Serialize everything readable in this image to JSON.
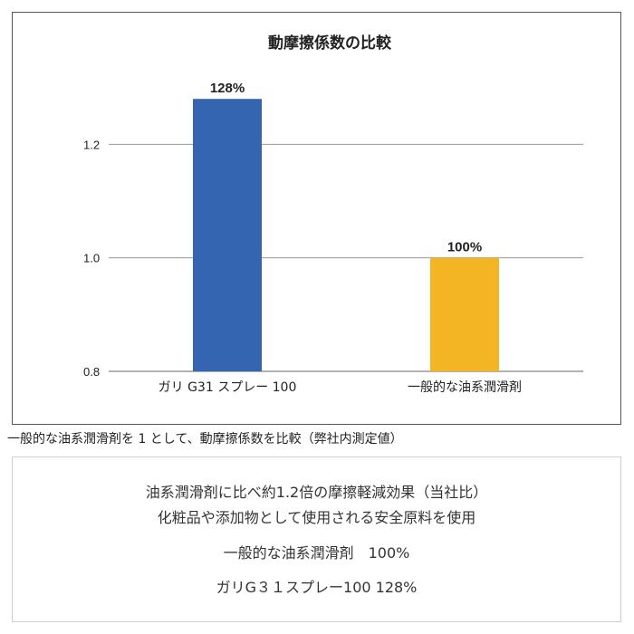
{
  "chart_data": {
    "type": "bar",
    "title": "動摩擦係数の比較",
    "categories": [
      "ガリ G31 スプレー 100",
      "一般的な油系潤滑剤"
    ],
    "values": [
      1.28,
      1.0
    ],
    "data_labels": [
      "128%",
      "100%"
    ],
    "colors": [
      "#3465b0",
      "#f3b523"
    ],
    "ylim": [
      0.8,
      1.4
    ],
    "yticks": [
      0.8,
      1.0,
      1.2
    ],
    "ytick_labels": [
      "0.8",
      "1.0",
      "1.2"
    ],
    "grid": true,
    "legend": "none"
  },
  "caption": "一般的な油系潤滑剤を 1 として、動摩擦係数を比較（弊社内測定値）",
  "info": {
    "line1": "油系潤滑剤に比べ約1.2倍の摩擦軽減効果（当社比）",
    "line2": "化粧品や添加物として使用される安全原料を使用",
    "line3": "一般的な油系潤滑剤　100%",
    "line4": "ガリG３１スプレー100 128%"
  }
}
